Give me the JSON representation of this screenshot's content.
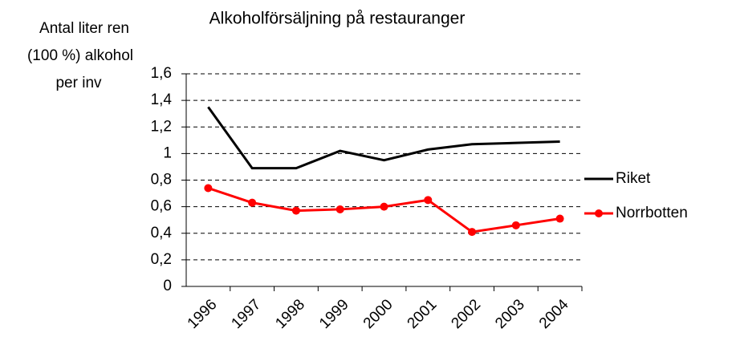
{
  "chart_data": {
    "type": "line",
    "title": "Alkoholförsäljning på restauranger",
    "y_label": [
      "Antal liter ren",
      "(100 %) alkohol",
      "per inv"
    ],
    "categories": [
      "1996",
      "1997",
      "1998",
      "1999",
      "2000",
      "2001",
      "2002",
      "2003",
      "2004"
    ],
    "series": [
      {
        "name": "Riket",
        "color": "#000000",
        "marker": false,
        "values": [
          1.35,
          0.89,
          0.89,
          1.02,
          0.95,
          1.03,
          1.07,
          1.08,
          1.09
        ]
      },
      {
        "name": "Norrbotten",
        "color": "#ff0000",
        "marker": true,
        "values": [
          0.74,
          0.63,
          0.57,
          0.58,
          0.6,
          0.65,
          0.41,
          0.46,
          0.51
        ]
      }
    ],
    "ylim": [
      0,
      1.6
    ],
    "yticks": [
      0,
      {
        "value": 0.2,
        "label": "0,2"
      },
      {
        "value": 0.4,
        "label": "0,4"
      },
      {
        "value": 0.6,
        "label": "0,6"
      },
      {
        "value": 0.8,
        "label": "0,8"
      },
      1,
      {
        "value": 1.2,
        "label": "1,2"
      },
      {
        "value": 1.4,
        "label": "1,4"
      },
      {
        "value": 1.6,
        "label": "1,6"
      }
    ],
    "grid": true,
    "legend": "right"
  }
}
